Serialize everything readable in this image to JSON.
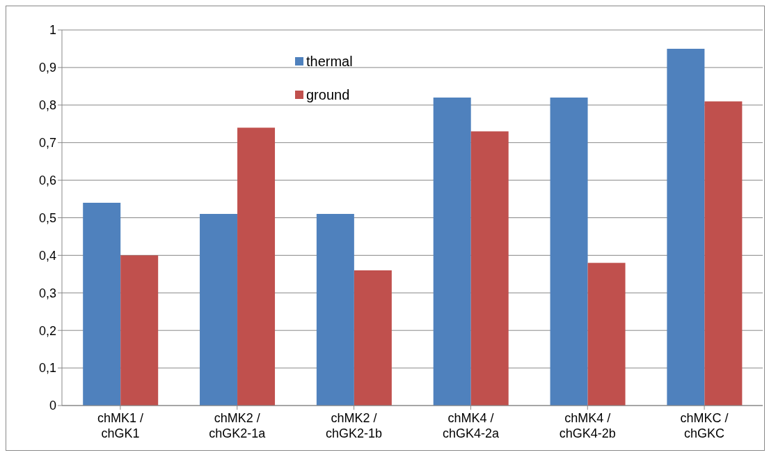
{
  "chart_data": {
    "type": "bar",
    "categories": [
      "chMK1 / chGK1",
      "chMK2 / chGK2-1a",
      "chMK2 / chGK2-1b",
      "chMK4 / chGK4-2a",
      "chMK4 / chGK4-2b",
      "chMKC / chGKC"
    ],
    "series": [
      {
        "name": "thermal",
        "color": "#4f81bd",
        "values": [
          0.54,
          0.51,
          0.51,
          0.82,
          0.82,
          0.95
        ]
      },
      {
        "name": "ground",
        "color": "#c0504d",
        "values": [
          0.4,
          0.74,
          0.36,
          0.73,
          0.38,
          0.81
        ]
      }
    ],
    "ylim": [
      0,
      1
    ],
    "yticks": [
      0,
      {
        "value": 0.1,
        "label": "0,1"
      },
      {
        "value": 0.2,
        "label": "0,2"
      },
      {
        "value": 0.3,
        "label": "0,3"
      },
      {
        "value": 0.4,
        "label": "0,4"
      },
      {
        "value": 0.5,
        "label": "0,5"
      },
      {
        "value": 0.6,
        "label": "0,6"
      },
      {
        "value": 0.7,
        "label": "0,7"
      },
      {
        "value": 0.8,
        "label": "0,8"
      },
      {
        "value": 0.9,
        "label": "0,9"
      },
      1
    ],
    "grid": "y",
    "legend": "top"
  }
}
